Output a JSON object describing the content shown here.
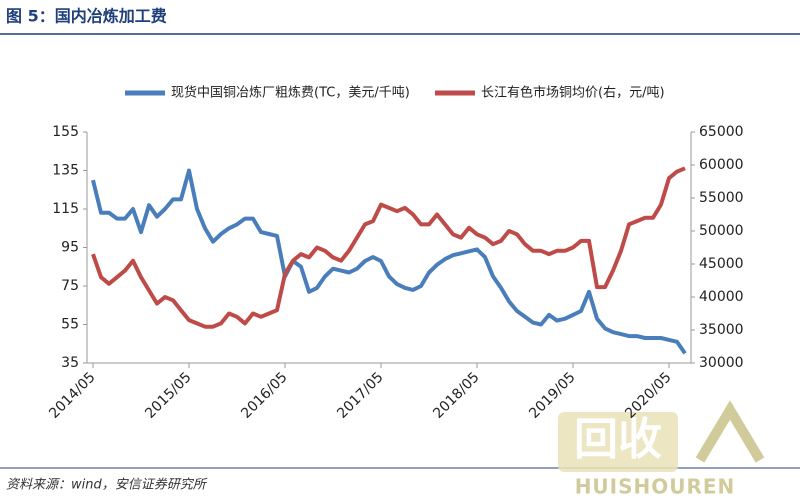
{
  "chart_data": {
    "type": "line",
    "title": "图 5：国内冶炼加工费",
    "source": "资料来源：wind，安信证券研究所",
    "categories": [
      "2014/05",
      null,
      null,
      null,
      null,
      null,
      null,
      null,
      null,
      null,
      null,
      null,
      "2015/05",
      null,
      null,
      null,
      null,
      null,
      null,
      null,
      null,
      null,
      null,
      null,
      "2016/05",
      null,
      null,
      null,
      null,
      null,
      null,
      null,
      null,
      null,
      null,
      null,
      "2017/05",
      null,
      null,
      null,
      null,
      null,
      null,
      null,
      null,
      null,
      null,
      null,
      "2018/05",
      null,
      null,
      null,
      null,
      null,
      null,
      null,
      null,
      null,
      null,
      null,
      "2019/05",
      null,
      null,
      null,
      null,
      null,
      null,
      null,
      null,
      null,
      null,
      null,
      "2020/05",
      null,
      null
    ],
    "series": [
      {
        "name": "现货中国铜冶炼厂粗炼费(TC，美元/千吨)",
        "color": "#4a7ebb",
        "axis": "y",
        "values": [
          130,
          113,
          113,
          110,
          110,
          115,
          103,
          117,
          111,
          115,
          120,
          120,
          135,
          115,
          105,
          98,
          102,
          105,
          107,
          110,
          110,
          103,
          102,
          101,
          80,
          88,
          85,
          72,
          74,
          80,
          84,
          83,
          82,
          84,
          88,
          90,
          88,
          80,
          76,
          74,
          73,
          75,
          82,
          86,
          89,
          91,
          92,
          93,
          94,
          90,
          80,
          74,
          67,
          62,
          59,
          56,
          55,
          60,
          57,
          58,
          60,
          62,
          72,
          58,
          53,
          51,
          50,
          49,
          49,
          48,
          48,
          48,
          47,
          46,
          40
        ]
      },
      {
        "name": "长江有色市场铜均价(右，元/吨)",
        "color": "#be4b48",
        "axis": "y2",
        "values": [
          46500,
          43000,
          42000,
          43000,
          44000,
          45500,
          43000,
          41000,
          39000,
          40000,
          39500,
          38000,
          36500,
          36000,
          35500,
          35500,
          36000,
          37500,
          37000,
          36000,
          37500,
          37000,
          37500,
          38000,
          43500,
          45500,
          46500,
          46000,
          47500,
          47000,
          46000,
          45500,
          47000,
          49000,
          51000,
          51500,
          54000,
          53500,
          53000,
          53500,
          52500,
          51000,
          51000,
          52500,
          51000,
          49500,
          49000,
          50500,
          49500,
          49000,
          48000,
          48500,
          50000,
          49500,
          48000,
          47000,
          47000,
          46500,
          47000,
          47000,
          47500,
          48500,
          48500,
          41500,
          41500,
          44000,
          47000,
          51000,
          51500,
          52000,
          52000,
          54000,
          58000,
          59000,
          59500
        ]
      }
    ],
    "ylim": [
      35,
      155
    ],
    "yticks": [
      35,
      55,
      75,
      95,
      115,
      135,
      155
    ],
    "y2lim": [
      30000,
      65000
    ],
    "y2ticks": [
      30000,
      35000,
      40000,
      45000,
      50000,
      55000,
      60000,
      65000
    ],
    "grid": false,
    "legend": "top"
  },
  "watermark": {
    "main": "回收",
    "sub": "HUISHOUREN"
  }
}
